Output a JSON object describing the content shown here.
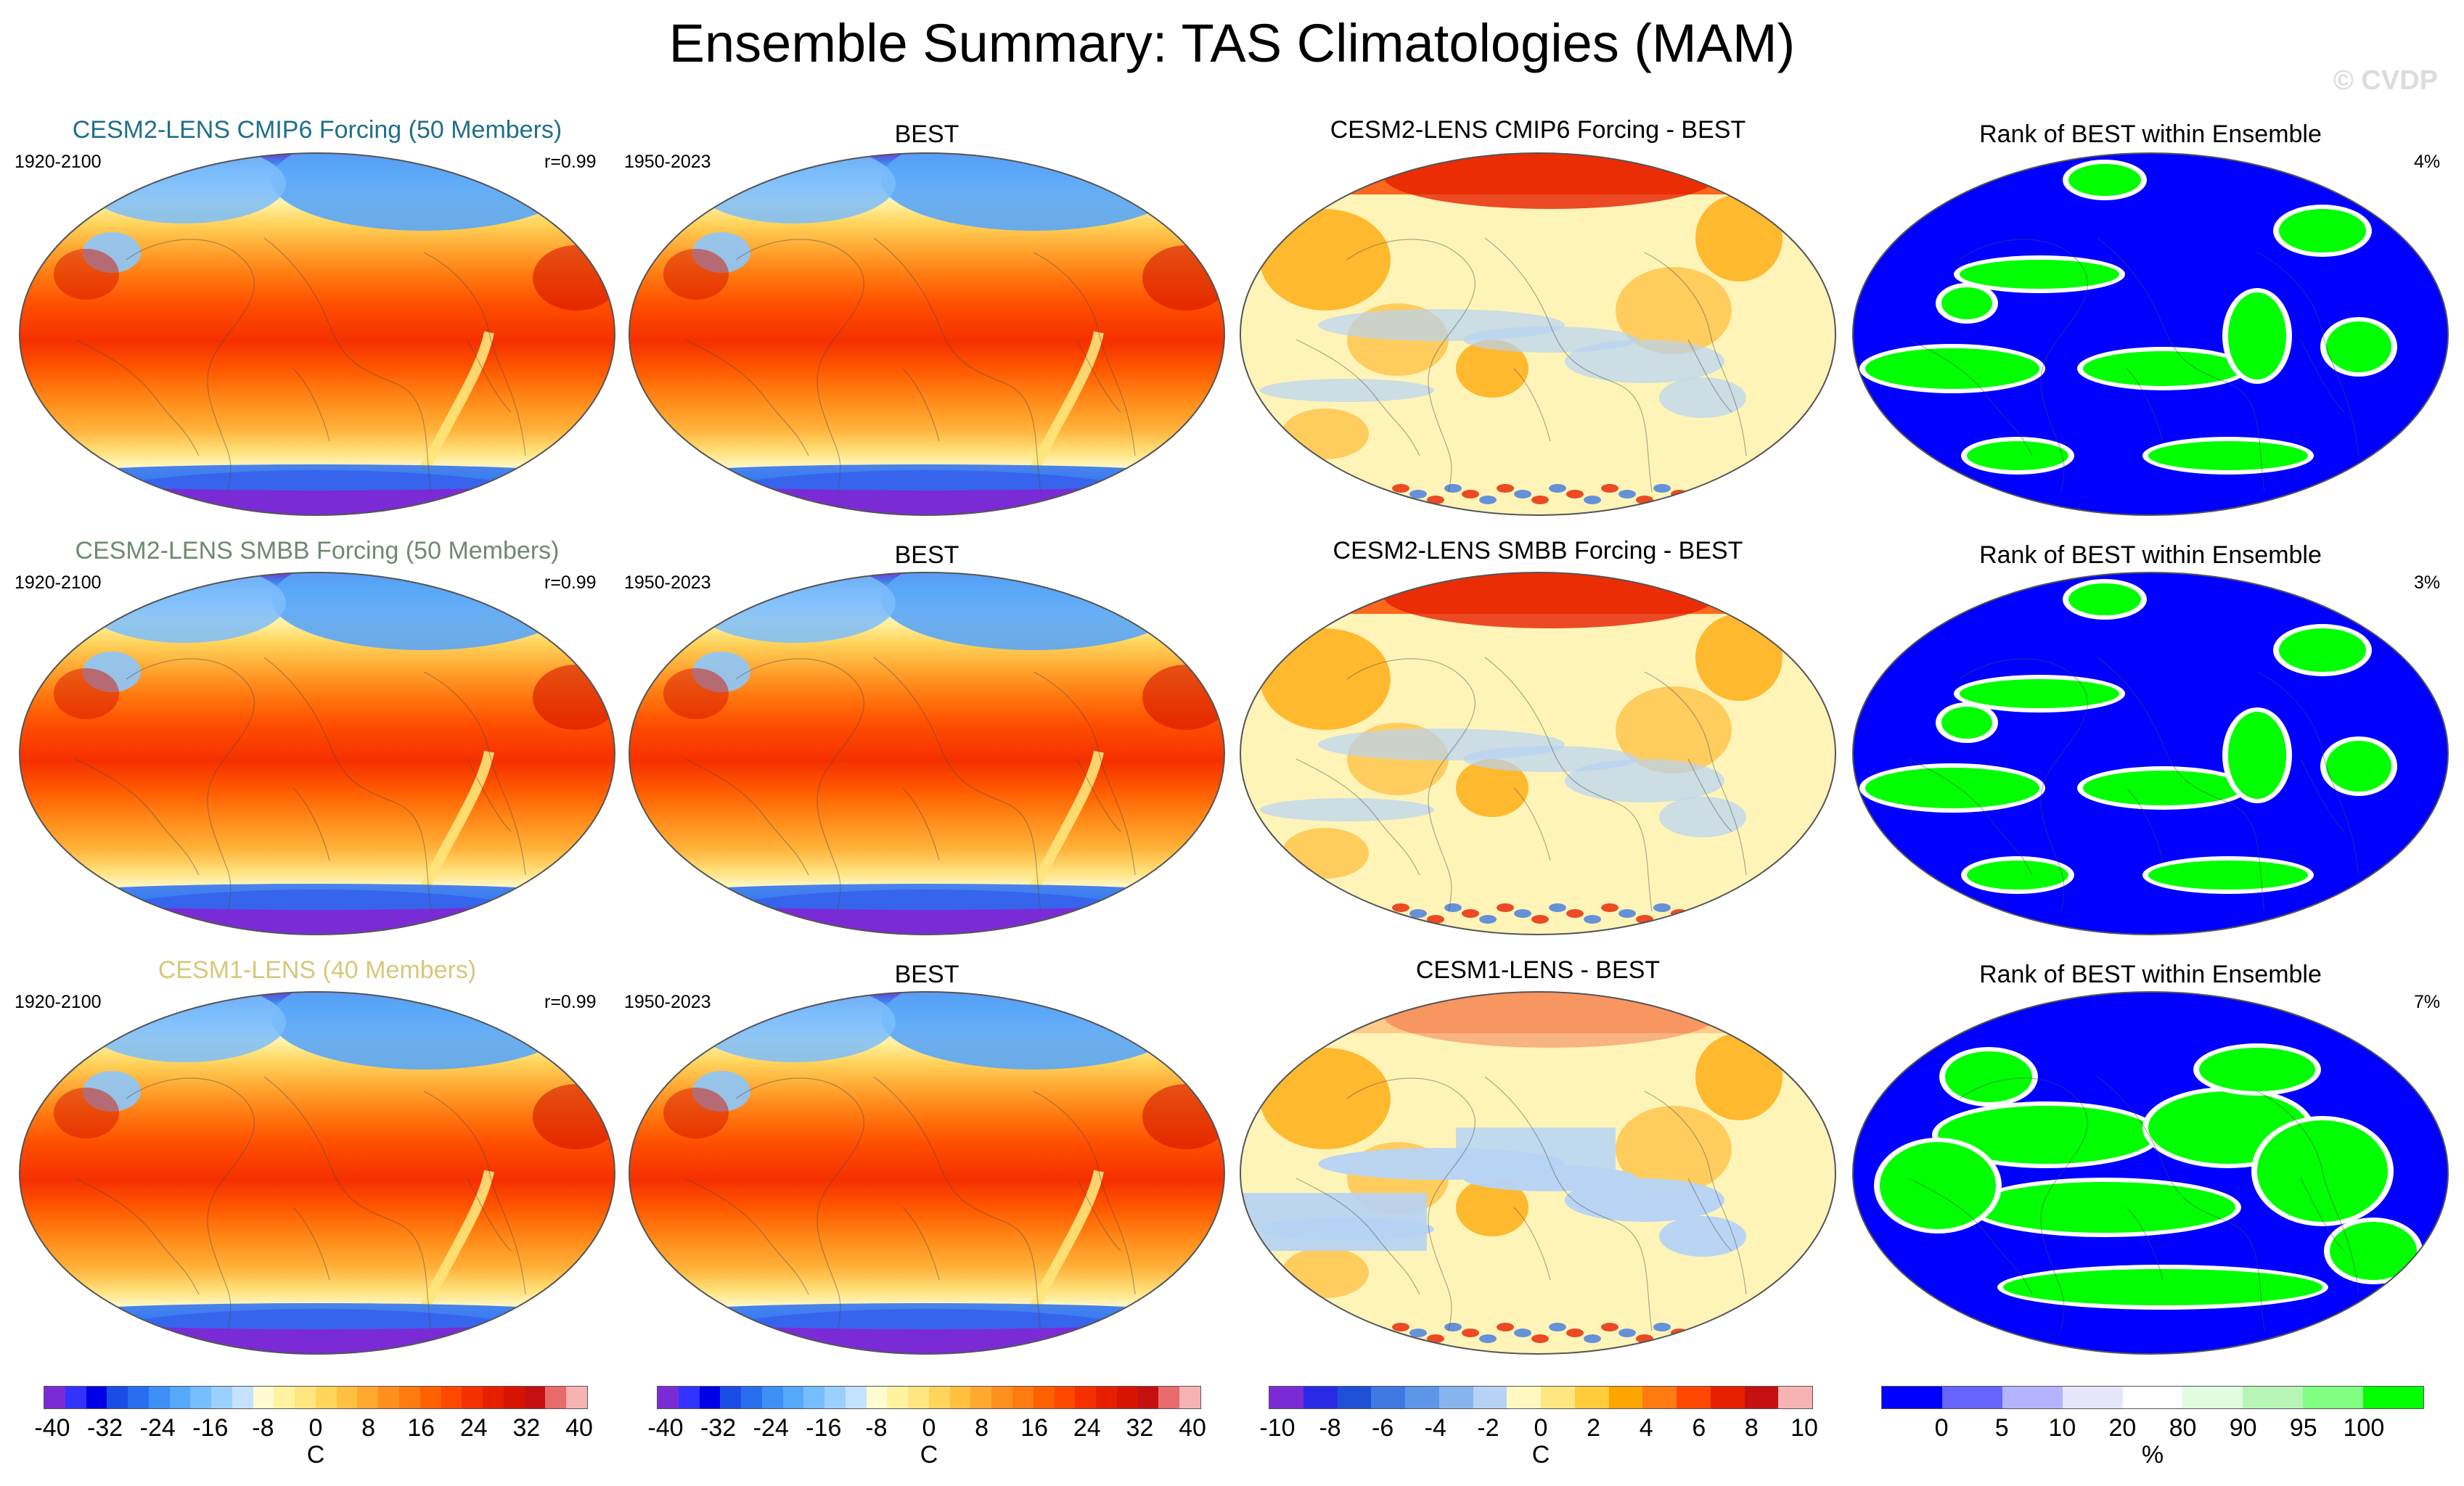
{
  "title": "Ensemble Summary: TAS Climatologies (MAM)",
  "watermark": "© CVDP",
  "rows": [
    {
      "model_title": "CESM2-LENS CMIP6 Forcing (50 Members)",
      "model_title_color": "#1f6f8b",
      "model_period": "1920-2100",
      "correlation": "r=0.99",
      "obs_title": "BEST",
      "obs_period": "1950-2023",
      "diff_title": "CESM2-LENS CMIP6 Forcing - BEST",
      "rank_title": "Rank of BEST within Ensemble",
      "rank_percent": "4%"
    },
    {
      "model_title": "CESM2-LENS SMBB Forcing (50 Members)",
      "model_title_color": "#6f8a6f",
      "model_period": "1920-2100",
      "correlation": "r=0.99",
      "obs_title": "BEST",
      "obs_period": "1950-2023",
      "diff_title": "CESM2-LENS SMBB Forcing - BEST",
      "rank_title": "Rank of BEST within Ensemble",
      "rank_percent": "3%"
    },
    {
      "model_title": "CESM1-LENS (40 Members)",
      "model_title_color": "#d8c77a",
      "model_period": "1920-2100",
      "correlation": "r=0.99",
      "obs_title": "BEST",
      "obs_period": "1950-2023",
      "diff_title": "CESM1-LENS - BEST",
      "rank_title": "Rank of BEST within Ensemble",
      "rank_percent": "7%"
    }
  ],
  "colorbars": {
    "climatology": {
      "unit": "C",
      "ticks": [
        "-40",
        "-32",
        "-24",
        "-16",
        "-8",
        "0",
        "8",
        "16",
        "24",
        "32",
        "40"
      ],
      "colors": [
        "#7b2bd6",
        "#3333ff",
        "#0000e6",
        "#1a4de6",
        "#2a6ef0",
        "#3e8ff5",
        "#55a8fa",
        "#75bdfc",
        "#9ad0fd",
        "#c2e2fd",
        "#fffbd0",
        "#fff3a0",
        "#ffe680",
        "#ffd45a",
        "#ffc040",
        "#ffa830",
        "#ff9020",
        "#ff7a10",
        "#ff6000",
        "#ff4800",
        "#f53000",
        "#e61f00",
        "#d61400",
        "#c41010",
        "#e86a6a",
        "#f7b3b3"
      ]
    },
    "difference": {
      "unit": "C",
      "ticks": [
        "-10",
        "-8",
        "-6",
        "-4",
        "-2",
        "0",
        "2",
        "4",
        "6",
        "8",
        "10"
      ],
      "colors": [
        "#7b2bd6",
        "#2a2ae6",
        "#1f4fd6",
        "#3e78e0",
        "#5d96e8",
        "#86b4ee",
        "#b6d3f5",
        "#fff8c0",
        "#ffe680",
        "#ffcc3a",
        "#ffa500",
        "#ff7a10",
        "#ff4800",
        "#e61f00",
        "#c41010",
        "#f7b3b3"
      ]
    },
    "rank": {
      "unit": "%",
      "ticks": [
        "0",
        "5",
        "10",
        "20",
        "80",
        "90",
        "95",
        "100"
      ],
      "colors": [
        "#0000ff",
        "#6666ff",
        "#b3b3ff",
        "#e6e6fb",
        "#ffffff",
        "#e0fbe0",
        "#b7f5b7",
        "#80ff80",
        "#00ff00"
      ]
    }
  }
}
